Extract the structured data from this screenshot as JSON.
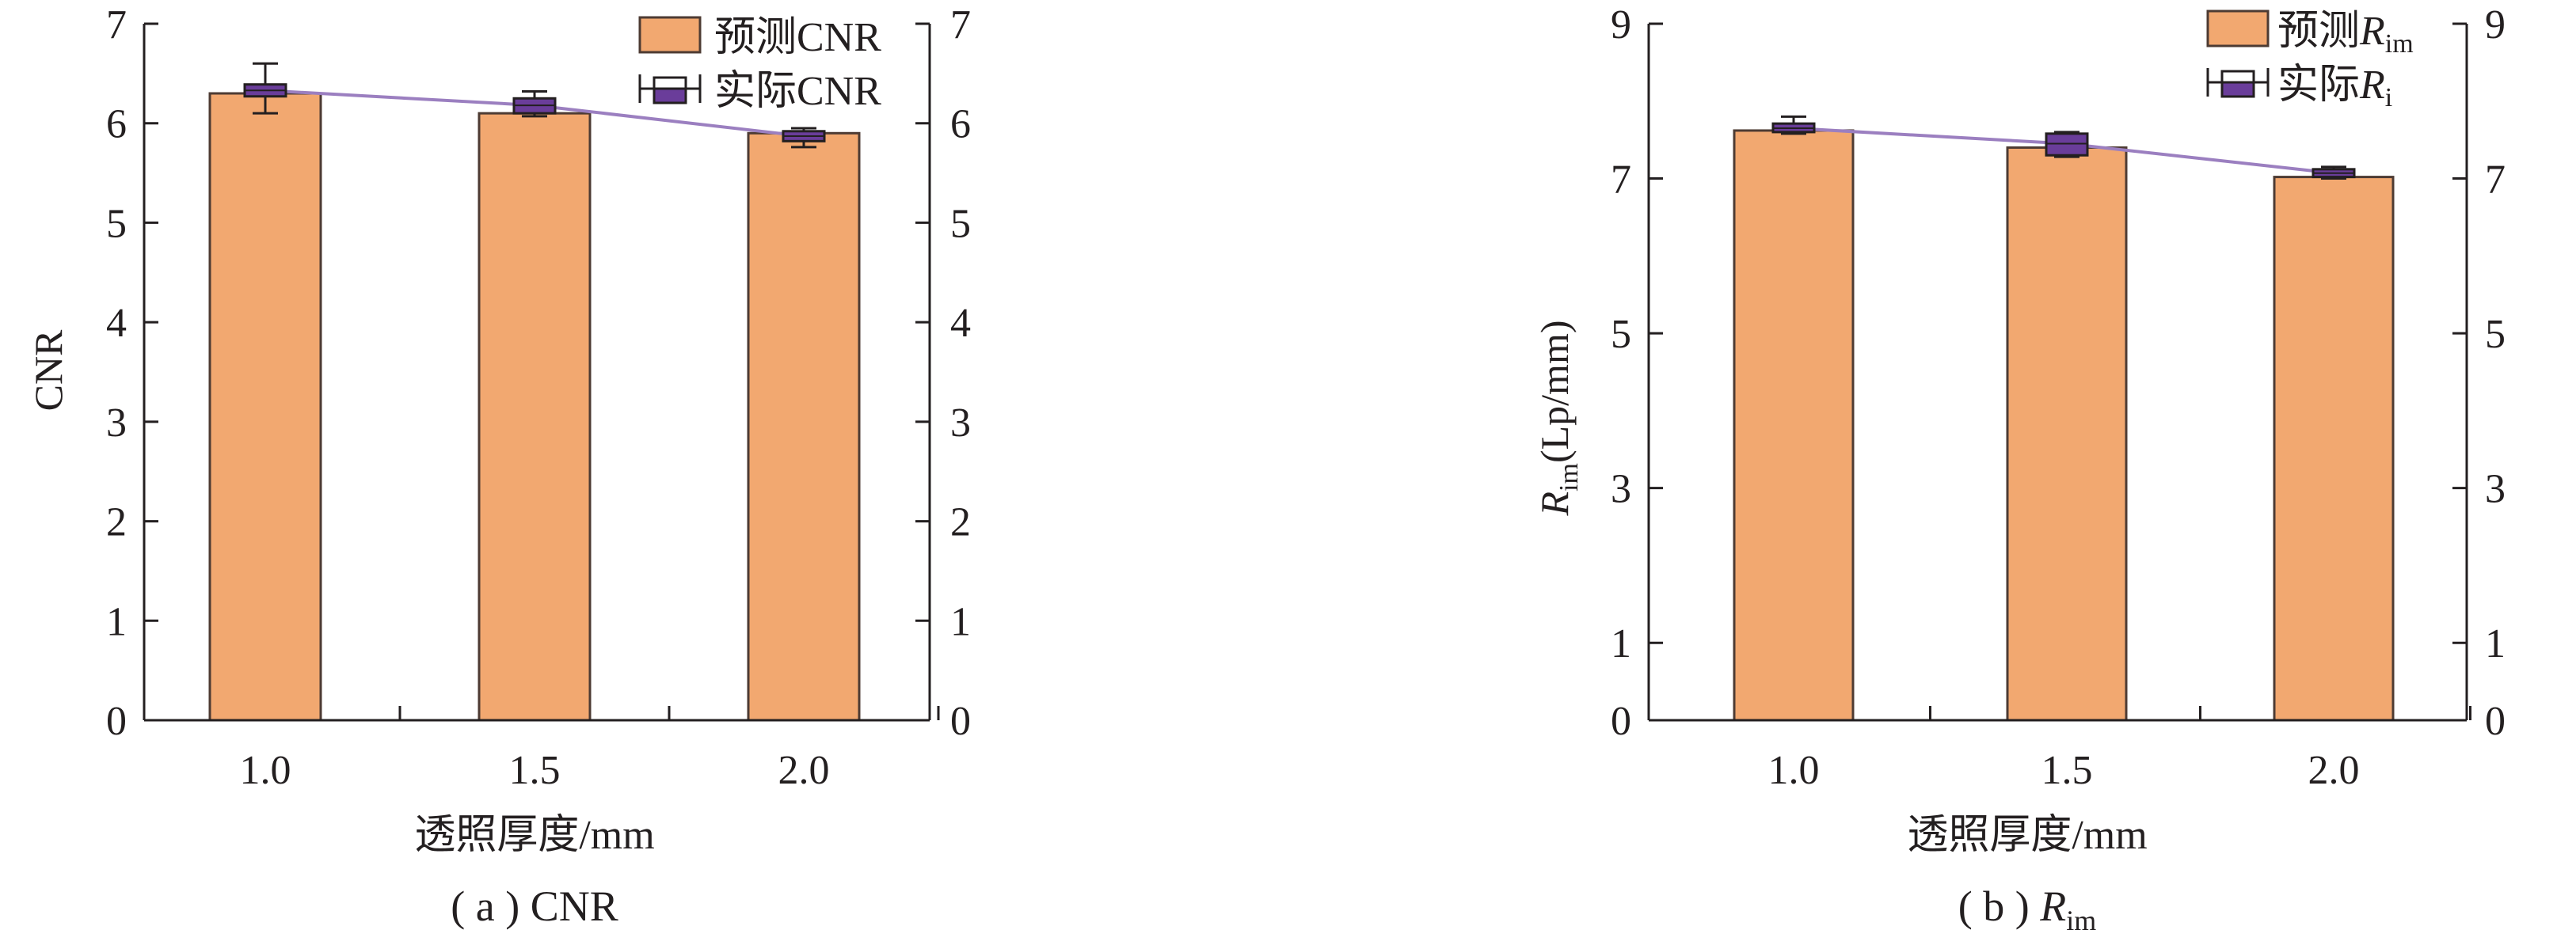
{
  "chart_data": [
    {
      "id": "a",
      "type": "bar",
      "categories": [
        "1.0",
        "1.5",
        "2.0"
      ],
      "xlabel": "透照厚度/mm",
      "ylabel": "CNR",
      "ylim": [
        0,
        7
      ],
      "yticks": [
        "0",
        "1",
        "2",
        "3",
        "4",
        "5",
        "6",
        "7"
      ],
      "y2ticks": [
        "0",
        "1",
        "2",
        "3",
        "4",
        "5",
        "6",
        "7"
      ],
      "caption": "( a ) CNR",
      "series": [
        {
          "name": "预测CNR",
          "kind": "bar",
          "color": "#f2a870",
          "values": [
            6.3,
            6.1,
            5.9
          ]
        },
        {
          "name": "实际CNR",
          "kind": "line-errorbar",
          "color": "#6a3d9a",
          "values": [
            6.33,
            6.18,
            5.87
          ],
          "box_low": [
            6.27,
            6.1,
            5.82
          ],
          "box_high": [
            6.39,
            6.25,
            5.92
          ],
          "whisker_low": [
            6.1,
            6.07,
            5.76
          ],
          "whisker_high": [
            6.6,
            6.32,
            5.95
          ]
        }
      ]
    },
    {
      "id": "b",
      "type": "bar",
      "categories": [
        "1.0",
        "1.5",
        "2.0"
      ],
      "xlabel": "透照厚度/mm",
      "ylabel": "R_im(Lp/mm)",
      "ylabel_main": "R",
      "ylabel_sub": "im",
      "ylabel_tail": "(Lp/mm)",
      "ylim": [
        0,
        9
      ],
      "yticks": [
        "0",
        "1",
        "3",
        "5",
        "7",
        "9"
      ],
      "ytick_values": [
        0,
        1,
        3,
        5,
        7,
        9
      ],
      "y2ticks": [
        "0",
        "1",
        "3",
        "5",
        "7",
        "9"
      ],
      "caption_prefix": "( b ) ",
      "caption_main": "R",
      "caption_sub": "im",
      "series": [
        {
          "name": "预测R_im",
          "name_prefix": "预测",
          "name_main": "R",
          "name_sub": "im",
          "kind": "bar",
          "color": "#f2a870",
          "values": [
            7.62,
            7.4,
            7.02
          ]
        },
        {
          "name": "实际R_i",
          "name_prefix": "实际",
          "name_main": "R",
          "name_sub": "i",
          "kind": "line-errorbar",
          "color": "#6a3d9a",
          "values": [
            7.65,
            7.45,
            7.07
          ],
          "box_low": [
            7.6,
            7.3,
            7.02
          ],
          "box_high": [
            7.71,
            7.58,
            7.12
          ],
          "whisker_low": [
            7.58,
            7.28,
            7.0
          ],
          "whisker_high": [
            7.8,
            7.6,
            7.15
          ]
        }
      ]
    }
  ]
}
